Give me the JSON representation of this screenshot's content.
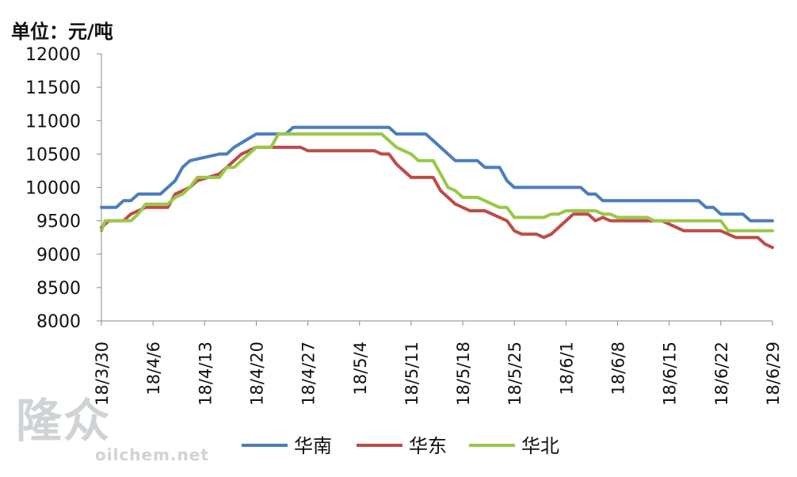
{
  "unit_label": "单位：元/吨",
  "watermark": {
    "logo_text": "隆众",
    "url": "oilchem.net"
  },
  "colors": {
    "south": "#4a7ebb",
    "east": "#be4b48",
    "north": "#98c846",
    "axis": "#888888"
  },
  "chart_data": {
    "type": "line",
    "title": "",
    "xlabel": "",
    "ylabel": "单位：元/吨",
    "ylim": [
      8000,
      12000
    ],
    "yticks": [
      8000,
      8500,
      9000,
      9500,
      10000,
      10500,
      11000,
      11500,
      12000
    ],
    "xlim": [
      0,
      91
    ],
    "xtick_positions": [
      0,
      7,
      14,
      21,
      28,
      35,
      42,
      49,
      56,
      63,
      70,
      77,
      84,
      91
    ],
    "xtick_labels": [
      "18/3/30",
      "18/4/6",
      "18/4/13",
      "18/4/20",
      "18/4/27",
      "18/5/4",
      "18/5/11",
      "18/5/18",
      "18/5/25",
      "18/6/1",
      "18/6/8",
      "18/6/15",
      "18/6/22",
      "18/6/29"
    ],
    "grid": false,
    "legend": "bottom",
    "series": [
      {
        "name": "华南",
        "color": "#4a7ebb",
        "points": [
          [
            0,
            9700
          ],
          [
            2,
            9700
          ],
          [
            3,
            9800
          ],
          [
            4,
            9800
          ],
          [
            5,
            9900
          ],
          [
            8,
            9900
          ],
          [
            9,
            10000
          ],
          [
            10,
            10100
          ],
          [
            11,
            10300
          ],
          [
            12,
            10400
          ],
          [
            16,
            10500
          ],
          [
            17,
            10500
          ],
          [
            18,
            10600
          ],
          [
            21,
            10800
          ],
          [
            25,
            10800
          ],
          [
            26,
            10900
          ],
          [
            39,
            10900
          ],
          [
            40,
            10800
          ],
          [
            44,
            10800
          ],
          [
            45,
            10700
          ],
          [
            48,
            10400
          ],
          [
            51,
            10400
          ],
          [
            52,
            10300
          ],
          [
            54,
            10300
          ],
          [
            55,
            10100
          ],
          [
            56,
            10000
          ],
          [
            65,
            10000
          ],
          [
            66,
            9900
          ],
          [
            67,
            9900
          ],
          [
            68,
            9800
          ],
          [
            81,
            9800
          ],
          [
            82,
            9700
          ],
          [
            83,
            9700
          ],
          [
            84,
            9600
          ],
          [
            87,
            9600
          ],
          [
            88,
            9500
          ],
          [
            91,
            9500
          ]
        ]
      },
      {
        "name": "华东",
        "color": "#be4b48",
        "points": [
          [
            0,
            9400
          ],
          [
            1,
            9500
          ],
          [
            3,
            9500
          ],
          [
            4,
            9600
          ],
          [
            6,
            9700
          ],
          [
            9,
            9700
          ],
          [
            10,
            9900
          ],
          [
            12,
            10000
          ],
          [
            13,
            10100
          ],
          [
            16,
            10200
          ],
          [
            19,
            10500
          ],
          [
            20,
            10550
          ],
          [
            21,
            10600
          ],
          [
            27,
            10600
          ],
          [
            28,
            10550
          ],
          [
            37,
            10550
          ],
          [
            38,
            10500
          ],
          [
            39,
            10500
          ],
          [
            40,
            10350
          ],
          [
            42,
            10150
          ],
          [
            45,
            10150
          ],
          [
            46,
            9950
          ],
          [
            48,
            9750
          ],
          [
            49,
            9700
          ],
          [
            50,
            9650
          ],
          [
            52,
            9650
          ],
          [
            55,
            9500
          ],
          [
            56,
            9350
          ],
          [
            57,
            9300
          ],
          [
            59,
            9300
          ],
          [
            60,
            9250
          ],
          [
            61,
            9300
          ],
          [
            63,
            9500
          ],
          [
            64,
            9600
          ],
          [
            66,
            9600
          ],
          [
            67,
            9500
          ],
          [
            68,
            9550
          ],
          [
            69,
            9500
          ],
          [
            76,
            9500
          ],
          [
            78,
            9400
          ],
          [
            79,
            9350
          ],
          [
            84,
            9350
          ],
          [
            86,
            9250
          ],
          [
            89,
            9250
          ],
          [
            90,
            9150
          ],
          [
            91,
            9100
          ],
          [
            92,
            9100
          ]
        ]
      },
      {
        "name": "华北",
        "color": "#98c846",
        "points": [
          [
            0,
            9350
          ],
          [
            0.5,
            9500
          ],
          [
            4,
            9500
          ],
          [
            5,
            9600
          ],
          [
            6,
            9750
          ],
          [
            9,
            9750
          ],
          [
            10,
            9850
          ],
          [
            11,
            9900
          ],
          [
            12,
            10000
          ],
          [
            13,
            10150
          ],
          [
            16,
            10150
          ],
          [
            17,
            10300
          ],
          [
            18,
            10300
          ],
          [
            21,
            10600
          ],
          [
            23,
            10600
          ],
          [
            24,
            10800
          ],
          [
            38,
            10800
          ],
          [
            39,
            10700
          ],
          [
            40,
            10600
          ],
          [
            42,
            10500
          ],
          [
            43,
            10400
          ],
          [
            45,
            10400
          ],
          [
            46,
            10200
          ],
          [
            47,
            10000
          ],
          [
            48,
            9950
          ],
          [
            49,
            9850
          ],
          [
            51,
            9850
          ],
          [
            52,
            9800
          ],
          [
            53,
            9750
          ],
          [
            54,
            9700
          ],
          [
            55,
            9700
          ],
          [
            56,
            9550
          ],
          [
            60,
            9550
          ],
          [
            61,
            9600
          ],
          [
            62,
            9600
          ],
          [
            63,
            9650
          ],
          [
            67,
            9650
          ],
          [
            68,
            9600
          ],
          [
            69,
            9600
          ],
          [
            70,
            9550
          ],
          [
            74,
            9550
          ],
          [
            75,
            9500
          ],
          [
            84,
            9500
          ],
          [
            85,
            9350
          ],
          [
            92,
            9350
          ]
        ]
      }
    ]
  }
}
